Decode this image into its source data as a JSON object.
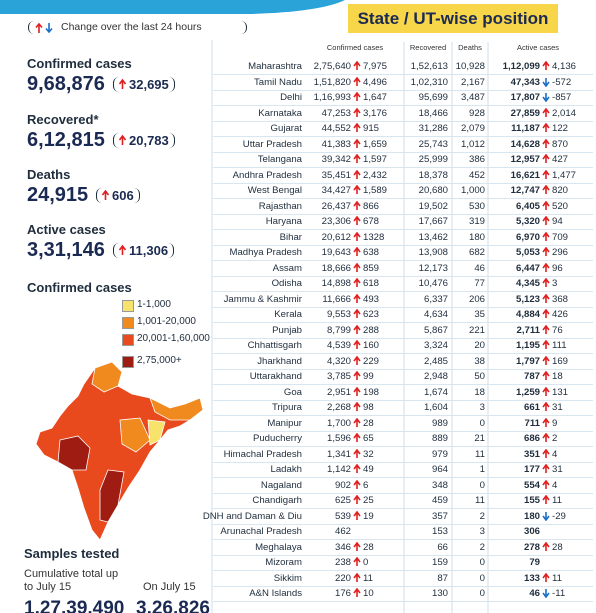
{
  "header": {
    "change_note": "Change over the last 24 hours",
    "title": "State / UT-wise position"
  },
  "summary": [
    {
      "label": "Confirmed cases",
      "value": "9,68,876",
      "change": "32,695"
    },
    {
      "label": "Recovered*",
      "value": "6,12,815",
      "change": "20,783"
    },
    {
      "label": "Deaths",
      "value": "24,915",
      "change": "606"
    },
    {
      "label": "Active cases",
      "value": "3,31,146",
      "change": "11,306"
    }
  ],
  "map_legend": {
    "title": "Confirmed cases",
    "items": [
      {
        "label": "1-1,000",
        "color": "#f7e36b"
      },
      {
        "label": "1,001-20,000",
        "color": "#f08a1f"
      },
      {
        "label": "20,001-1,60,000",
        "color": "#e84a1e"
      },
      {
        "label": "2,75,000+",
        "color": "#9e1c12"
      }
    ]
  },
  "samples": {
    "title": "Samples tested",
    "cumulative_label": "Cumulative total up to July 15",
    "daily_label": "On July 15",
    "cumulative": "1,27,39,490",
    "daily": "3,26,826"
  },
  "table": {
    "columns": [
      "Confirmed cases",
      "Recovered",
      "Deaths",
      "Active cases"
    ],
    "rows": [
      [
        "Maharashtra",
        "2,75,640",
        "7,975",
        "1,52,613",
        "10,928",
        "1,12,099",
        "4,136"
      ],
      [
        "Tamil Nadu",
        "1,51,820",
        "4,496",
        "1,02,310",
        "2,167",
        "47,343",
        "-572"
      ],
      [
        "Delhi",
        "1,16,993",
        "1,647",
        "95,699",
        "3,487",
        "17,807",
        "-857"
      ],
      [
        "Karnataka",
        "47,253",
        "3,176",
        "18,466",
        "928",
        "27,859",
        "2,014"
      ],
      [
        "Gujarat",
        "44,552",
        "915",
        "31,286",
        "2,079",
        "11,187",
        "122"
      ],
      [
        "Uttar Pradesh",
        "41,383",
        "1,659",
        "25,743",
        "1,012",
        "14,628",
        "870"
      ],
      [
        "Telangana",
        "39,342",
        "1,597",
        "25,999",
        "386",
        "12,957",
        "427"
      ],
      [
        "Andhra Pradesh",
        "35,451",
        "2,432",
        "18,378",
        "452",
        "16,621",
        "1,477"
      ],
      [
        "West Bengal",
        "34,427",
        "1,589",
        "20,680",
        "1,000",
        "12,747",
        "820"
      ],
      [
        "Rajasthan",
        "26,437",
        "866",
        "19,502",
        "530",
        "6,405",
        "520"
      ],
      [
        "Haryana",
        "23,306",
        "678",
        "17,667",
        "319",
        "5,320",
        "94"
      ],
      [
        "Bihar",
        "20,612",
        "1328",
        "13,462",
        "180",
        "6,970",
        "709"
      ],
      [
        "Madhya Pradesh",
        "19,643",
        "638",
        "13,908",
        "682",
        "5,053",
        "296"
      ],
      [
        "Assam",
        "18,666",
        "859",
        "12,173",
        "46",
        "6,447",
        "96"
      ],
      [
        "Odisha",
        "14,898",
        "618",
        "10,476",
        "77",
        "4,345",
        "3"
      ],
      [
        "Jammu & Kashmir",
        "11,666",
        "493",
        "6,337",
        "206",
        "5,123",
        "368"
      ],
      [
        "Kerala",
        "9,553",
        "623",
        "4,634",
        "35",
        "4,884",
        "426"
      ],
      [
        "Punjab",
        "8,799",
        "288",
        "5,867",
        "221",
        "2,711",
        "76"
      ],
      [
        "Chhattisgarh",
        "4,539",
        "160",
        "3,324",
        "20",
        "1,195",
        "111"
      ],
      [
        "Jharkhand",
        "4,320",
        "229",
        "2,485",
        "38",
        "1,797",
        "169"
      ],
      [
        "Uttarakhand",
        "3,785",
        "99",
        "2,948",
        "50",
        "787",
        "18"
      ],
      [
        "Goa",
        "2,951",
        "198",
        "1,674",
        "18",
        "1,259",
        "131"
      ],
      [
        "Tripura",
        "2,268",
        "98",
        "1,604",
        "3",
        "661",
        "31"
      ],
      [
        "Manipur",
        "1,700",
        "28",
        "989",
        "0",
        "711",
        "9"
      ],
      [
        "Puducherry",
        "1,596",
        "65",
        "889",
        "21",
        "686",
        "2"
      ],
      [
        "Himachal Pradesh",
        "1,341",
        "32",
        "979",
        "11",
        "351",
        "4"
      ],
      [
        "Ladakh",
        "1,142",
        "49",
        "964",
        "1",
        "177",
        "31"
      ],
      [
        "Nagaland",
        "902",
        "6",
        "348",
        "0",
        "554",
        "4"
      ],
      [
        "Chandigarh",
        "625",
        "25",
        "459",
        "11",
        "155",
        "11"
      ],
      [
        "DNH and Daman & Diu",
        "539",
        "19",
        "357",
        "2",
        "180",
        "-29"
      ],
      [
        "Arunachal Pradesh",
        "462",
        null,
        "153",
        "3",
        "306",
        null
      ],
      [
        "Meghalaya",
        "346",
        "28",
        "66",
        "2",
        "278",
        "28"
      ],
      [
        "Mizoram",
        "238",
        "0",
        "159",
        "0",
        "79",
        null
      ],
      [
        "Sikkim",
        "220",
        "11",
        "87",
        "0",
        "133",
        "11"
      ],
      [
        "A&N Islands",
        "176",
        "10",
        "130",
        "0",
        "46",
        "-11"
      ]
    ]
  }
}
